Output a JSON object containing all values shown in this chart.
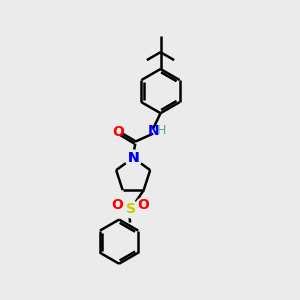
{
  "bg_color": "#ebebeb",
  "line_color": "#000000",
  "bond_width": 1.8,
  "colors": {
    "N": "#0000ff",
    "O": "#ff0000",
    "S": "#cccc00",
    "C": "#000000",
    "H": "#5f9ea0"
  },
  "layout": {
    "xlim": [
      0,
      10
    ],
    "ylim": [
      0,
      14
    ]
  }
}
